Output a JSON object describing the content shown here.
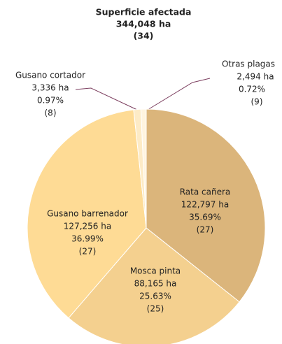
{
  "chart_data": {
    "type": "pie",
    "title": "Superficie afectada",
    "subtitle": "344,048 ha",
    "note": "(34)",
    "categories": [
      "Rata cañera",
      "Mosca pinta",
      "Gusano barrenador",
      "Gusano cortador",
      "Otras plagas"
    ],
    "values": [
      35.69,
      25.63,
      36.99,
      0.97,
      0.72
    ],
    "value_labels": [
      "35.69%",
      "25.63%",
      "36.99%",
      "0.97%",
      "0.72%"
    ],
    "hectares": [
      122797,
      88165,
      127256,
      3336,
      2494
    ],
    "hectare_labels": [
      "122,797 ha",
      "88,165 ha",
      "127,256  ha",
      "3,336 ha",
      "2,494 ha"
    ],
    "counts": [
      27,
      25,
      27,
      8,
      9
    ],
    "count_labels": [
      "(27)",
      "(25)",
      "(27)",
      "(8)",
      "(9)"
    ],
    "colors": [
      "#dbb57b",
      "#f4d08f",
      "#fedb95",
      "#fdebc6",
      "#fff4df"
    ]
  }
}
